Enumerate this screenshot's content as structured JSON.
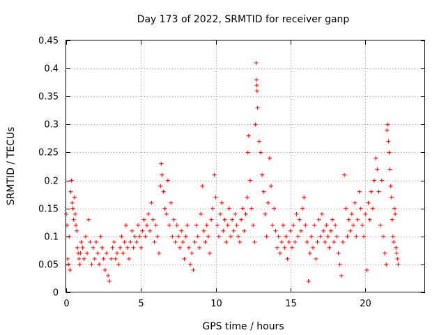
{
  "chart_data": {
    "type": "scatter",
    "title": "Day 173 of 2022, SRMTID for receiver ganp",
    "xlabel": "GPS time / hours",
    "ylabel": "SRMTID / TECUs",
    "xlim": [
      0,
      24
    ],
    "ylim": [
      0,
      0.45
    ],
    "xticks": [
      0,
      5,
      10,
      15,
      20
    ],
    "xtick_labels": [
      "0",
      "5",
      "10",
      "15",
      "20"
    ],
    "yticks": [
      0,
      0.05,
      0.1,
      0.15,
      0.2,
      0.25,
      0.3,
      0.35,
      0.4,
      0.45
    ],
    "ytick_labels": [
      "0",
      "0.05",
      "0.1",
      "0.15",
      "0.2",
      "0.25",
      "0.3",
      "0.35",
      "0.4",
      "0.45"
    ],
    "grid": true,
    "marker": "+",
    "color": "#ff0000",
    "series": [
      {
        "name": "SRMTID",
        "points": [
          [
            0.0,
            0.14
          ],
          [
            0.05,
            0.12
          ],
          [
            0.1,
            0.06
          ],
          [
            0.15,
            0.05
          ],
          [
            0.2,
            0.1
          ],
          [
            0.25,
            0.04
          ],
          [
            0.3,
            0.18
          ],
          [
            0.35,
            0.2
          ],
          [
            0.4,
            0.16
          ],
          [
            0.45,
            0.15
          ],
          [
            0.5,
            0.13
          ],
          [
            0.55,
            0.17
          ],
          [
            0.6,
            0.14
          ],
          [
            0.65,
            0.12
          ],
          [
            0.7,
            0.11
          ],
          [
            0.75,
            0.08
          ],
          [
            0.8,
            0.07
          ],
          [
            0.85,
            0.06
          ],
          [
            0.9,
            0.05
          ],
          [
            0.95,
            0.07
          ],
          [
            1.0,
            0.09
          ],
          [
            1.1,
            0.08
          ],
          [
            1.2,
            0.06
          ],
          [
            1.3,
            0.1
          ],
          [
            1.4,
            0.07
          ],
          [
            1.5,
            0.13
          ],
          [
            1.6,
            0.09
          ],
          [
            1.7,
            0.05
          ],
          [
            1.8,
            0.08
          ],
          [
            1.9,
            0.06
          ],
          [
            2.0,
            0.09
          ],
          [
            2.1,
            0.07
          ],
          [
            2.2,
            0.05
          ],
          [
            2.3,
            0.1
          ],
          [
            2.4,
            0.08
          ],
          [
            2.5,
            0.06
          ],
          [
            2.6,
            0.04
          ],
          [
            2.7,
            0.07
          ],
          [
            2.8,
            0.03
          ],
          [
            2.9,
            0.02
          ],
          [
            3.0,
            0.06
          ],
          [
            3.1,
            0.08
          ],
          [
            3.2,
            0.09
          ],
          [
            3.3,
            0.06
          ],
          [
            3.4,
            0.07
          ],
          [
            3.5,
            0.05
          ],
          [
            3.6,
            0.08
          ],
          [
            3.7,
            0.1
          ],
          [
            3.8,
            0.07
          ],
          [
            3.9,
            0.09
          ],
          [
            4.0,
            0.12
          ],
          [
            4.1,
            0.08
          ],
          [
            4.2,
            0.06
          ],
          [
            4.3,
            0.09
          ],
          [
            4.4,
            0.11
          ],
          [
            4.5,
            0.08
          ],
          [
            4.6,
            0.1
          ],
          [
            4.7,
            0.09
          ],
          [
            4.8,
            0.12
          ],
          [
            4.9,
            0.1
          ],
          [
            5.0,
            0.08
          ],
          [
            5.1,
            0.11
          ],
          [
            5.2,
            0.13
          ],
          [
            5.3,
            0.1
          ],
          [
            5.4,
            0.12
          ],
          [
            5.5,
            0.14
          ],
          [
            5.6,
            0.11
          ],
          [
            5.7,
            0.16
          ],
          [
            5.8,
            0.13
          ],
          [
            5.9,
            0.09
          ],
          [
            6.0,
            0.12
          ],
          [
            6.1,
            0.1
          ],
          [
            6.2,
            0.07
          ],
          [
            6.3,
            0.19
          ],
          [
            6.35,
            0.23
          ],
          [
            6.4,
            0.21
          ],
          [
            6.5,
            0.18
          ],
          [
            6.6,
            0.15
          ],
          [
            6.7,
            0.14
          ],
          [
            6.8,
            0.2
          ],
          [
            6.9,
            0.12
          ],
          [
            7.0,
            0.16
          ],
          [
            7.1,
            0.1
          ],
          [
            7.2,
            0.13
          ],
          [
            7.3,
            0.09
          ],
          [
            7.4,
            0.12
          ],
          [
            7.5,
            0.1
          ],
          [
            7.6,
            0.08
          ],
          [
            7.7,
            0.11
          ],
          [
            7.8,
            0.09
          ],
          [
            7.9,
            0.06
          ],
          [
            8.0,
            0.1
          ],
          [
            8.1,
            0.12
          ],
          [
            8.2,
            0.08
          ],
          [
            8.3,
            0.05
          ],
          [
            8.4,
            0.07
          ],
          [
            8.5,
            0.04
          ],
          [
            8.6,
            0.09
          ],
          [
            8.7,
            0.12
          ],
          [
            8.8,
            0.1
          ],
          [
            8.9,
            0.08
          ],
          [
            9.0,
            0.14
          ],
          [
            9.1,
            0.19
          ],
          [
            9.2,
            0.11
          ],
          [
            9.3,
            0.09
          ],
          [
            9.4,
            0.12
          ],
          [
            9.5,
            0.1
          ],
          [
            9.6,
            0.07
          ],
          [
            9.7,
            0.13
          ],
          [
            9.8,
            0.15
          ],
          [
            9.9,
            0.21
          ],
          [
            10.0,
            0.17
          ],
          [
            10.1,
            0.12
          ],
          [
            10.2,
            0.1
          ],
          [
            10.3,
            0.14
          ],
          [
            10.4,
            0.16
          ],
          [
            10.5,
            0.11
          ],
          [
            10.6,
            0.13
          ],
          [
            10.7,
            0.09
          ],
          [
            10.8,
            0.12
          ],
          [
            10.9,
            0.15
          ],
          [
            11.0,
            0.1
          ],
          [
            11.1,
            0.13
          ],
          [
            11.2,
            0.11
          ],
          [
            11.3,
            0.14
          ],
          [
            11.4,
            0.12
          ],
          [
            11.5,
            0.1
          ],
          [
            11.6,
            0.09
          ],
          [
            11.7,
            0.13
          ],
          [
            11.8,
            0.15
          ],
          [
            11.9,
            0.11
          ],
          [
            12.0,
            0.14
          ],
          [
            12.1,
            0.17
          ],
          [
            12.15,
            0.25
          ],
          [
            12.2,
            0.28
          ],
          [
            12.3,
            0.2
          ],
          [
            12.4,
            0.15
          ],
          [
            12.5,
            0.12
          ],
          [
            12.6,
            0.09
          ],
          [
            12.65,
            0.3
          ],
          [
            12.7,
            0.41
          ],
          [
            12.72,
            0.38
          ],
          [
            12.74,
            0.37
          ],
          [
            12.76,
            0.36
          ],
          [
            12.8,
            0.33
          ],
          [
            12.9,
            0.27
          ],
          [
            13.0,
            0.25
          ],
          [
            13.1,
            0.21
          ],
          [
            13.2,
            0.18
          ],
          [
            13.3,
            0.14
          ],
          [
            13.4,
            0.1
          ],
          [
            13.5,
            0.16
          ],
          [
            13.6,
            0.24
          ],
          [
            13.7,
            0.19
          ],
          [
            13.8,
            0.12
          ],
          [
            13.9,
            0.15
          ],
          [
            14.0,
            0.11
          ],
          [
            14.1,
            0.08
          ],
          [
            14.2,
            0.1
          ],
          [
            14.3,
            0.07
          ],
          [
            14.4,
            0.09
          ],
          [
            14.5,
            0.12
          ],
          [
            14.6,
            0.08
          ],
          [
            14.7,
            0.1
          ],
          [
            14.8,
            0.06
          ],
          [
            14.9,
            0.09
          ],
          [
            15.0,
            0.11
          ],
          [
            15.1,
            0.08
          ],
          [
            15.2,
            0.12
          ],
          [
            15.3,
            0.09
          ],
          [
            15.4,
            0.14
          ],
          [
            15.5,
            0.1
          ],
          [
            15.6,
            0.13
          ],
          [
            15.7,
            0.11
          ],
          [
            15.8,
            0.15
          ],
          [
            15.9,
            0.17
          ],
          [
            16.0,
            0.12
          ],
          [
            16.1,
            0.09
          ],
          [
            16.2,
            0.02
          ],
          [
            16.3,
            0.07
          ],
          [
            16.4,
            0.1
          ],
          [
            16.5,
            0.08
          ],
          [
            16.6,
            0.12
          ],
          [
            16.7,
            0.06
          ],
          [
            16.8,
            0.09
          ],
          [
            16.9,
            0.13
          ],
          [
            17.0,
            0.1
          ],
          [
            17.1,
            0.14
          ],
          [
            17.2,
            0.11
          ],
          [
            17.3,
            0.09
          ],
          [
            17.4,
            0.12
          ],
          [
            17.5,
            0.1
          ],
          [
            17.6,
            0.08
          ],
          [
            17.7,
            0.11
          ],
          [
            17.8,
            0.13
          ],
          [
            17.9,
            0.09
          ],
          [
            18.0,
            0.12
          ],
          [
            18.1,
            0.1
          ],
          [
            18.2,
            0.07
          ],
          [
            18.3,
            0.05
          ],
          [
            18.4,
            0.03
          ],
          [
            18.5,
            0.09
          ],
          [
            18.6,
            0.21
          ],
          [
            18.7,
            0.15
          ],
          [
            18.8,
            0.1
          ],
          [
            18.9,
            0.13
          ],
          [
            19.0,
            0.11
          ],
          [
            19.1,
            0.14
          ],
          [
            19.2,
            0.12
          ],
          [
            19.3,
            0.16
          ],
          [
            19.4,
            0.1
          ],
          [
            19.5,
            0.13
          ],
          [
            19.6,
            0.18
          ],
          [
            19.7,
            0.15
          ],
          [
            19.8,
            0.12
          ],
          [
            19.9,
            0.1
          ],
          [
            20.0,
            0.14
          ],
          [
            20.1,
            0.04
          ],
          [
            20.2,
            0.16
          ],
          [
            20.3,
            0.13
          ],
          [
            20.4,
            0.18
          ],
          [
            20.5,
            0.15
          ],
          [
            20.6,
            0.2
          ],
          [
            20.7,
            0.24
          ],
          [
            20.8,
            0.22
          ],
          [
            20.9,
            0.18
          ],
          [
            21.0,
            0.12
          ],
          [
            21.1,
            0.2
          ],
          [
            21.2,
            0.1
          ],
          [
            21.3,
            0.07
          ],
          [
            21.4,
            0.05
          ],
          [
            21.45,
            0.29
          ],
          [
            21.5,
            0.3
          ],
          [
            21.55,
            0.27
          ],
          [
            21.6,
            0.25
          ],
          [
            21.65,
            0.22
          ],
          [
            21.7,
            0.19
          ],
          [
            21.75,
            0.17
          ],
          [
            21.8,
            0.13
          ],
          [
            21.85,
            0.1
          ],
          [
            21.9,
            0.09
          ],
          [
            21.95,
            0.15
          ],
          [
            22.0,
            0.14
          ],
          [
            22.05,
            0.08
          ],
          [
            22.1,
            0.07
          ],
          [
            22.15,
            0.06
          ],
          [
            22.2,
            0.05
          ]
        ]
      }
    ]
  }
}
